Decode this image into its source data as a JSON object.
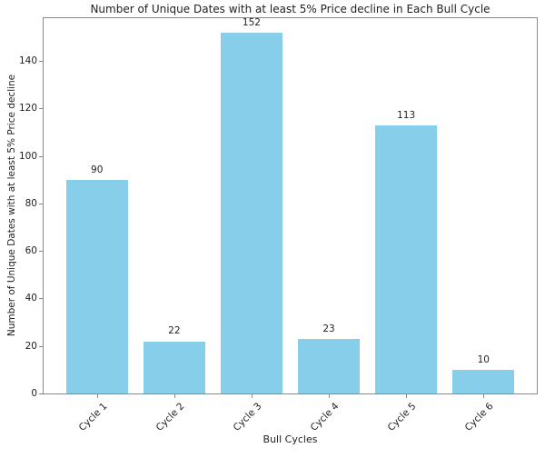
{
  "chart_data": {
    "type": "bar",
    "title": "Number of Unique Dates with at least 5% Price decline in Each Bull Cycle",
    "xlabel": "Bull Cycles",
    "ylabel": "Number of Unique Dates with at least 5% Price decline",
    "categories": [
      "Cycle 1",
      "Cycle 2",
      "Cycle 3",
      "Cycle 4",
      "Cycle 5",
      "Cycle 6"
    ],
    "values": [
      90,
      22,
      152,
      23,
      113,
      10
    ],
    "bar_labels": [
      "90",
      "22",
      "152",
      "23",
      "113",
      "10"
    ],
    "yticks": [
      0,
      20,
      40,
      60,
      80,
      100,
      120,
      140
    ],
    "ylim": [
      0,
      158
    ],
    "bar_color": "#87CEEB",
    "bar_width_fraction": 0.8,
    "x_margin_units": 0.69,
    "xtick_rotation_deg": 45,
    "grid": false,
    "legend": null
  }
}
